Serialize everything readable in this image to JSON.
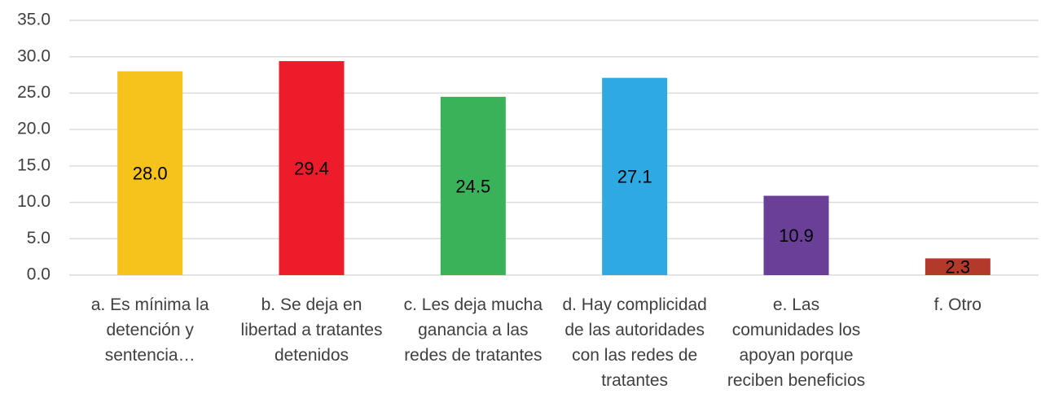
{
  "chart_data": {
    "type": "bar",
    "categories": [
      "a. Es mínima la detención y sentencia…",
      "b. Se deja en libertad a tratantes detenidos",
      "c. Les deja mucha ganancia a las redes de tratantes",
      "d. Hay complicidad de las autoridades con las redes de tratantes",
      "e. Las comunidades los apoyan porque reciben beneficios",
      "f. Otro"
    ],
    "values": [
      28.0,
      29.4,
      24.5,
      27.1,
      10.9,
      2.3
    ],
    "value_labels": [
      "28.0",
      "29.4",
      "24.5",
      "27.1",
      "10.9",
      "2.3"
    ],
    "colors": [
      "#f6c21c",
      "#ed1c2a",
      "#3ab25a",
      "#2fa9e1",
      "#6a3f98",
      "#b33a2a"
    ],
    "ylim": [
      0,
      35
    ],
    "yticks": [
      {
        "value": 0,
        "label": "0.0"
      },
      {
        "value": 5,
        "label": "5.0"
      },
      {
        "value": 10,
        "label": "10.0"
      },
      {
        "value": 15,
        "label": "15.0"
      },
      {
        "value": 20,
        "label": "20.0"
      },
      {
        "value": 25,
        "label": "25.0"
      },
      {
        "value": 30,
        "label": "30.0"
      },
      {
        "value": 35,
        "label": "35.0"
      }
    ],
    "grid": true
  }
}
